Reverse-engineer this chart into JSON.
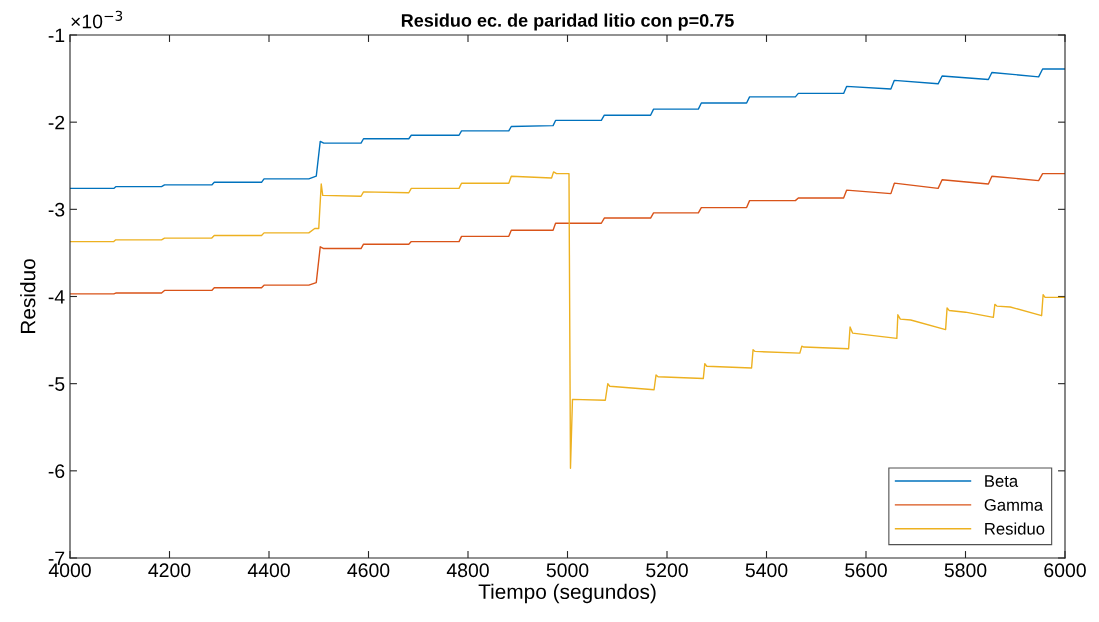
{
  "chart_data": {
    "type": "line",
    "title": "Residuo ec. de paridad litio con p=0.75",
    "xlabel": "Tiempo (segundos)",
    "ylabel": "Residuo",
    "annotations": [
      "×10$^{−3}$"
    ],
    "xlim": [
      4000,
      6000
    ],
    "xticks": [
      4000,
      4200,
      4400,
      4600,
      4800,
      5000,
      5200,
      5400,
      5600,
      5800,
      6000
    ],
    "ylim": [
      -7,
      -1
    ],
    "yticks": [
      -7,
      -6,
      -5,
      -4,
      -3,
      -2,
      -1
    ],
    "grid": false,
    "legend": "bottom right",
    "line_style": "solid",
    "marker": "none",
    "series": [
      {
        "name": "Beta",
        "color": "#0072bd",
        "x": [
          4000,
          4088,
          4092,
          4184,
          4190,
          4285,
          4290,
          4385,
          4390,
          4480,
          4495,
          4503,
          4510,
          4585,
          4590,
          4681,
          4686,
          4782,
          4787,
          4882,
          4887,
          4971,
          4976,
          5068,
          5074,
          5167,
          5173,
          5263,
          5269,
          5360,
          5366,
          5458,
          5464,
          5555,
          5561,
          5650,
          5657,
          5745,
          5753,
          5846,
          5853,
          5947,
          5955,
          6000
        ],
        "values": [
          -2.76,
          -2.76,
          -2.74,
          -2.74,
          -2.72,
          -2.72,
          -2.69,
          -2.69,
          -2.65,
          -2.65,
          -2.62,
          -2.22,
          -2.24,
          -2.24,
          -2.19,
          -2.19,
          -2.15,
          -2.15,
          -2.1,
          -2.1,
          -2.05,
          -2.04,
          -1.98,
          -1.98,
          -1.92,
          -1.92,
          -1.85,
          -1.85,
          -1.78,
          -1.78,
          -1.71,
          -1.71,
          -1.67,
          -1.67,
          -1.59,
          -1.62,
          -1.52,
          -1.56,
          -1.47,
          -1.51,
          -1.43,
          -1.48,
          -1.39,
          -1.39
        ]
      },
      {
        "name": "Gamma",
        "color": "#d95319",
        "x": [
          4000,
          4088,
          4092,
          4184,
          4190,
          4285,
          4290,
          4385,
          4390,
          4480,
          4495,
          4503,
          4510,
          4585,
          4590,
          4681,
          4686,
          4782,
          4787,
          4882,
          4887,
          4971,
          4976,
          5068,
          5074,
          5167,
          5173,
          5263,
          5269,
          5360,
          5366,
          5458,
          5464,
          5555,
          5561,
          5650,
          5657,
          5745,
          5753,
          5846,
          5853,
          5947,
          5955,
          6000
        ],
        "values": [
          -3.97,
          -3.97,
          -3.96,
          -3.96,
          -3.93,
          -3.93,
          -3.9,
          -3.9,
          -3.87,
          -3.87,
          -3.84,
          -3.43,
          -3.45,
          -3.45,
          -3.4,
          -3.4,
          -3.37,
          -3.37,
          -3.31,
          -3.31,
          -3.24,
          -3.24,
          -3.16,
          -3.16,
          -3.1,
          -3.1,
          -3.04,
          -3.04,
          -2.98,
          -2.98,
          -2.9,
          -2.9,
          -2.87,
          -2.87,
          -2.78,
          -2.82,
          -2.7,
          -2.76,
          -2.66,
          -2.71,
          -2.62,
          -2.67,
          -2.59,
          -2.59
        ]
      },
      {
        "name": "Residuo",
        "color": "#edb120",
        "x": [
          4000,
          4088,
          4092,
          4184,
          4190,
          4285,
          4290,
          4385,
          4390,
          4480,
          4492,
          4500,
          4505,
          4508,
          4585,
          4590,
          4681,
          4686,
          4782,
          4787,
          4882,
          4887,
          4968,
          4972,
          4978,
          5003,
          5006,
          5010,
          5076,
          5081,
          5085,
          5174,
          5178,
          5182,
          5273,
          5276,
          5280,
          5370,
          5373,
          5377,
          5467,
          5471,
          5475,
          5565,
          5568,
          5573,
          5662,
          5664,
          5669,
          5690,
          5760,
          5763,
          5767,
          5800,
          5856,
          5859,
          5863,
          5890,
          5953,
          5956,
          5960,
          6000
        ],
        "values": [
          -3.37,
          -3.37,
          -3.35,
          -3.35,
          -3.33,
          -3.33,
          -3.3,
          -3.3,
          -3.27,
          -3.27,
          -3.22,
          -3.22,
          -2.71,
          -2.84,
          -2.85,
          -2.8,
          -2.81,
          -2.76,
          -2.76,
          -2.7,
          -2.7,
          -2.62,
          -2.64,
          -2.57,
          -2.59,
          -2.59,
          -5.97,
          -5.18,
          -5.19,
          -5.0,
          -5.03,
          -5.07,
          -4.9,
          -4.92,
          -4.94,
          -4.77,
          -4.8,
          -4.82,
          -4.61,
          -4.63,
          -4.65,
          -4.57,
          -4.58,
          -4.6,
          -4.35,
          -4.42,
          -4.48,
          -4.21,
          -4.26,
          -4.27,
          -4.38,
          -4.13,
          -4.16,
          -4.18,
          -4.24,
          -4.09,
          -4.11,
          -4.12,
          -4.22,
          -3.98,
          -4.01,
          -4.01
        ]
      }
    ]
  }
}
